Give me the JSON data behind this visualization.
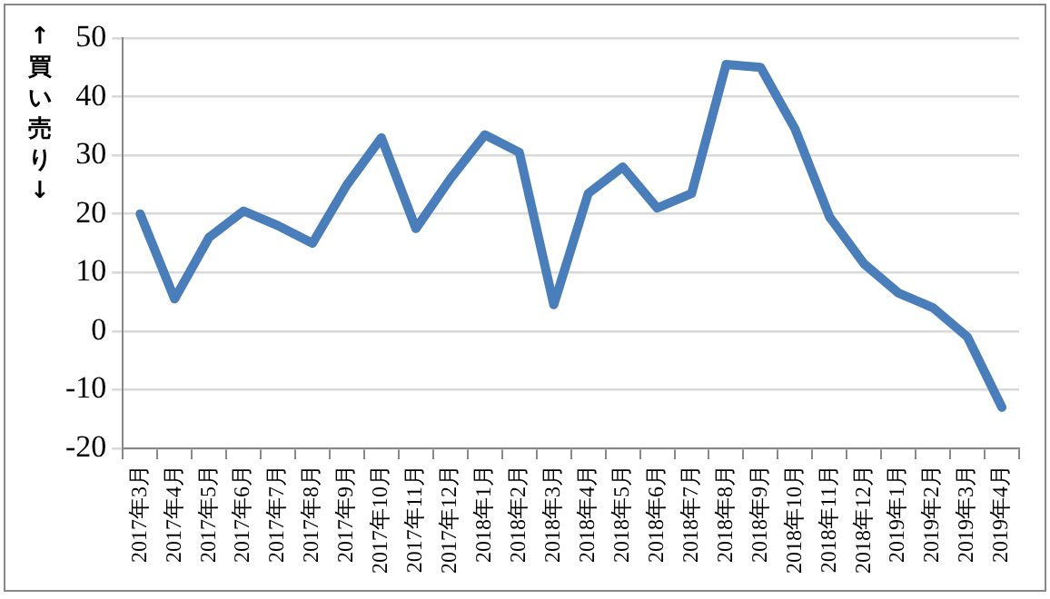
{
  "chart_data": {
    "type": "line",
    "ylabel": "↑買い売り↓",
    "categories": [
      "2017年3月",
      "2017年4月",
      "2017年5月",
      "2017年6月",
      "2017年7月",
      "2017年8月",
      "2017年9月",
      "2017年10月",
      "2017年11月",
      "2017年12月",
      "2018年1月",
      "2018年2月",
      "2018年3月",
      "2018年4月",
      "2018年5月",
      "2018年6月",
      "2018年7月",
      "2018年8月",
      "2018年9月",
      "2018年10月",
      "2018年11月",
      "2018年12月",
      "2019年1月",
      "2019年2月",
      "2019年3月",
      "2019年4月"
    ],
    "series": [
      {
        "color": "#4a7ebb",
        "values": [
          20,
          5.5,
          16,
          20.5,
          18,
          15,
          25,
          33,
          17.5,
          26,
          33.5,
          30.5,
          4.5,
          23.5,
          28,
          21,
          23.5,
          45.5,
          45,
          34.5,
          19.5,
          11.5,
          6.5,
          4,
          -1,
          -13
        ]
      }
    ],
    "ylim": [
      -20,
      50
    ],
    "yticks": [
      -20,
      -10,
      0,
      10,
      20,
      30,
      40,
      50
    ],
    "grid": "y",
    "legend": false,
    "marker": "none",
    "line_style": "solid"
  }
}
